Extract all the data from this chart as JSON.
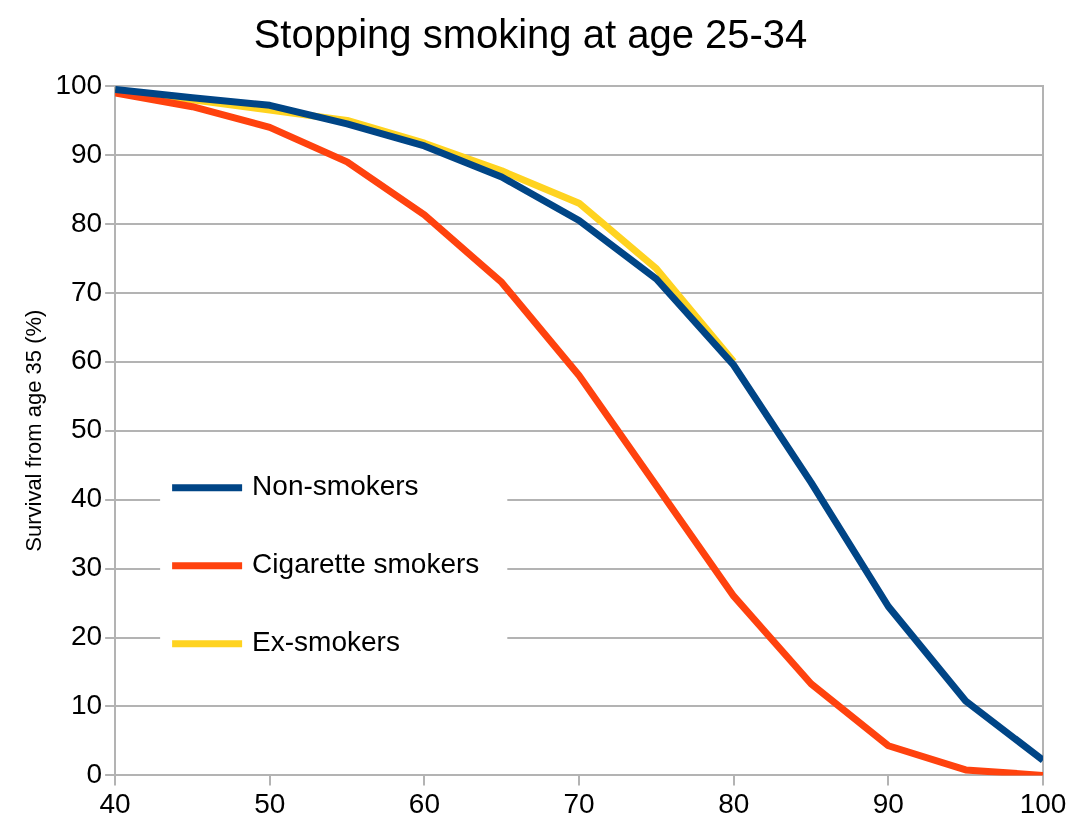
{
  "chart_data": {
    "type": "line",
    "title": "Stopping smoking at age 25-34",
    "ylabel": "Survival from age 35 (%)",
    "x": [
      40,
      45,
      50,
      55,
      60,
      65,
      70,
      75,
      80,
      85,
      90,
      95,
      100
    ],
    "series": [
      {
        "name": "Non-smokers",
        "color": "#004586",
        "values": [
          99.5,
          98.3,
          97.2,
          94.5,
          91.3,
          86.8,
          80.5,
          72,
          59.5,
          42.5,
          24.5,
          10.8,
          2.2
        ]
      },
      {
        "name": "Cigarette smokers",
        "color": "#ff420e",
        "values": [
          99,
          97,
          94,
          89,
          81.3,
          71.5,
          58,
          42,
          26,
          13.3,
          4.3,
          0.8,
          0
        ]
      },
      {
        "name": "Ex-smokers",
        "color": "#ffd320",
        "values": [
          99.3,
          98,
          96.5,
          95,
          91.7,
          87.7,
          83,
          73.5,
          60,
          null,
          null,
          null,
          null
        ]
      }
    ],
    "xlim": [
      40,
      100
    ],
    "xticks": [
      40,
      50,
      60,
      70,
      80,
      90,
      100
    ],
    "ylim": [
      0,
      100
    ],
    "yticks": [
      0,
      10,
      20,
      30,
      40,
      50,
      60,
      70,
      80,
      90,
      100
    ],
    "grid": "y",
    "legend": "center left",
    "marker": "none",
    "line_style": "solid"
  }
}
